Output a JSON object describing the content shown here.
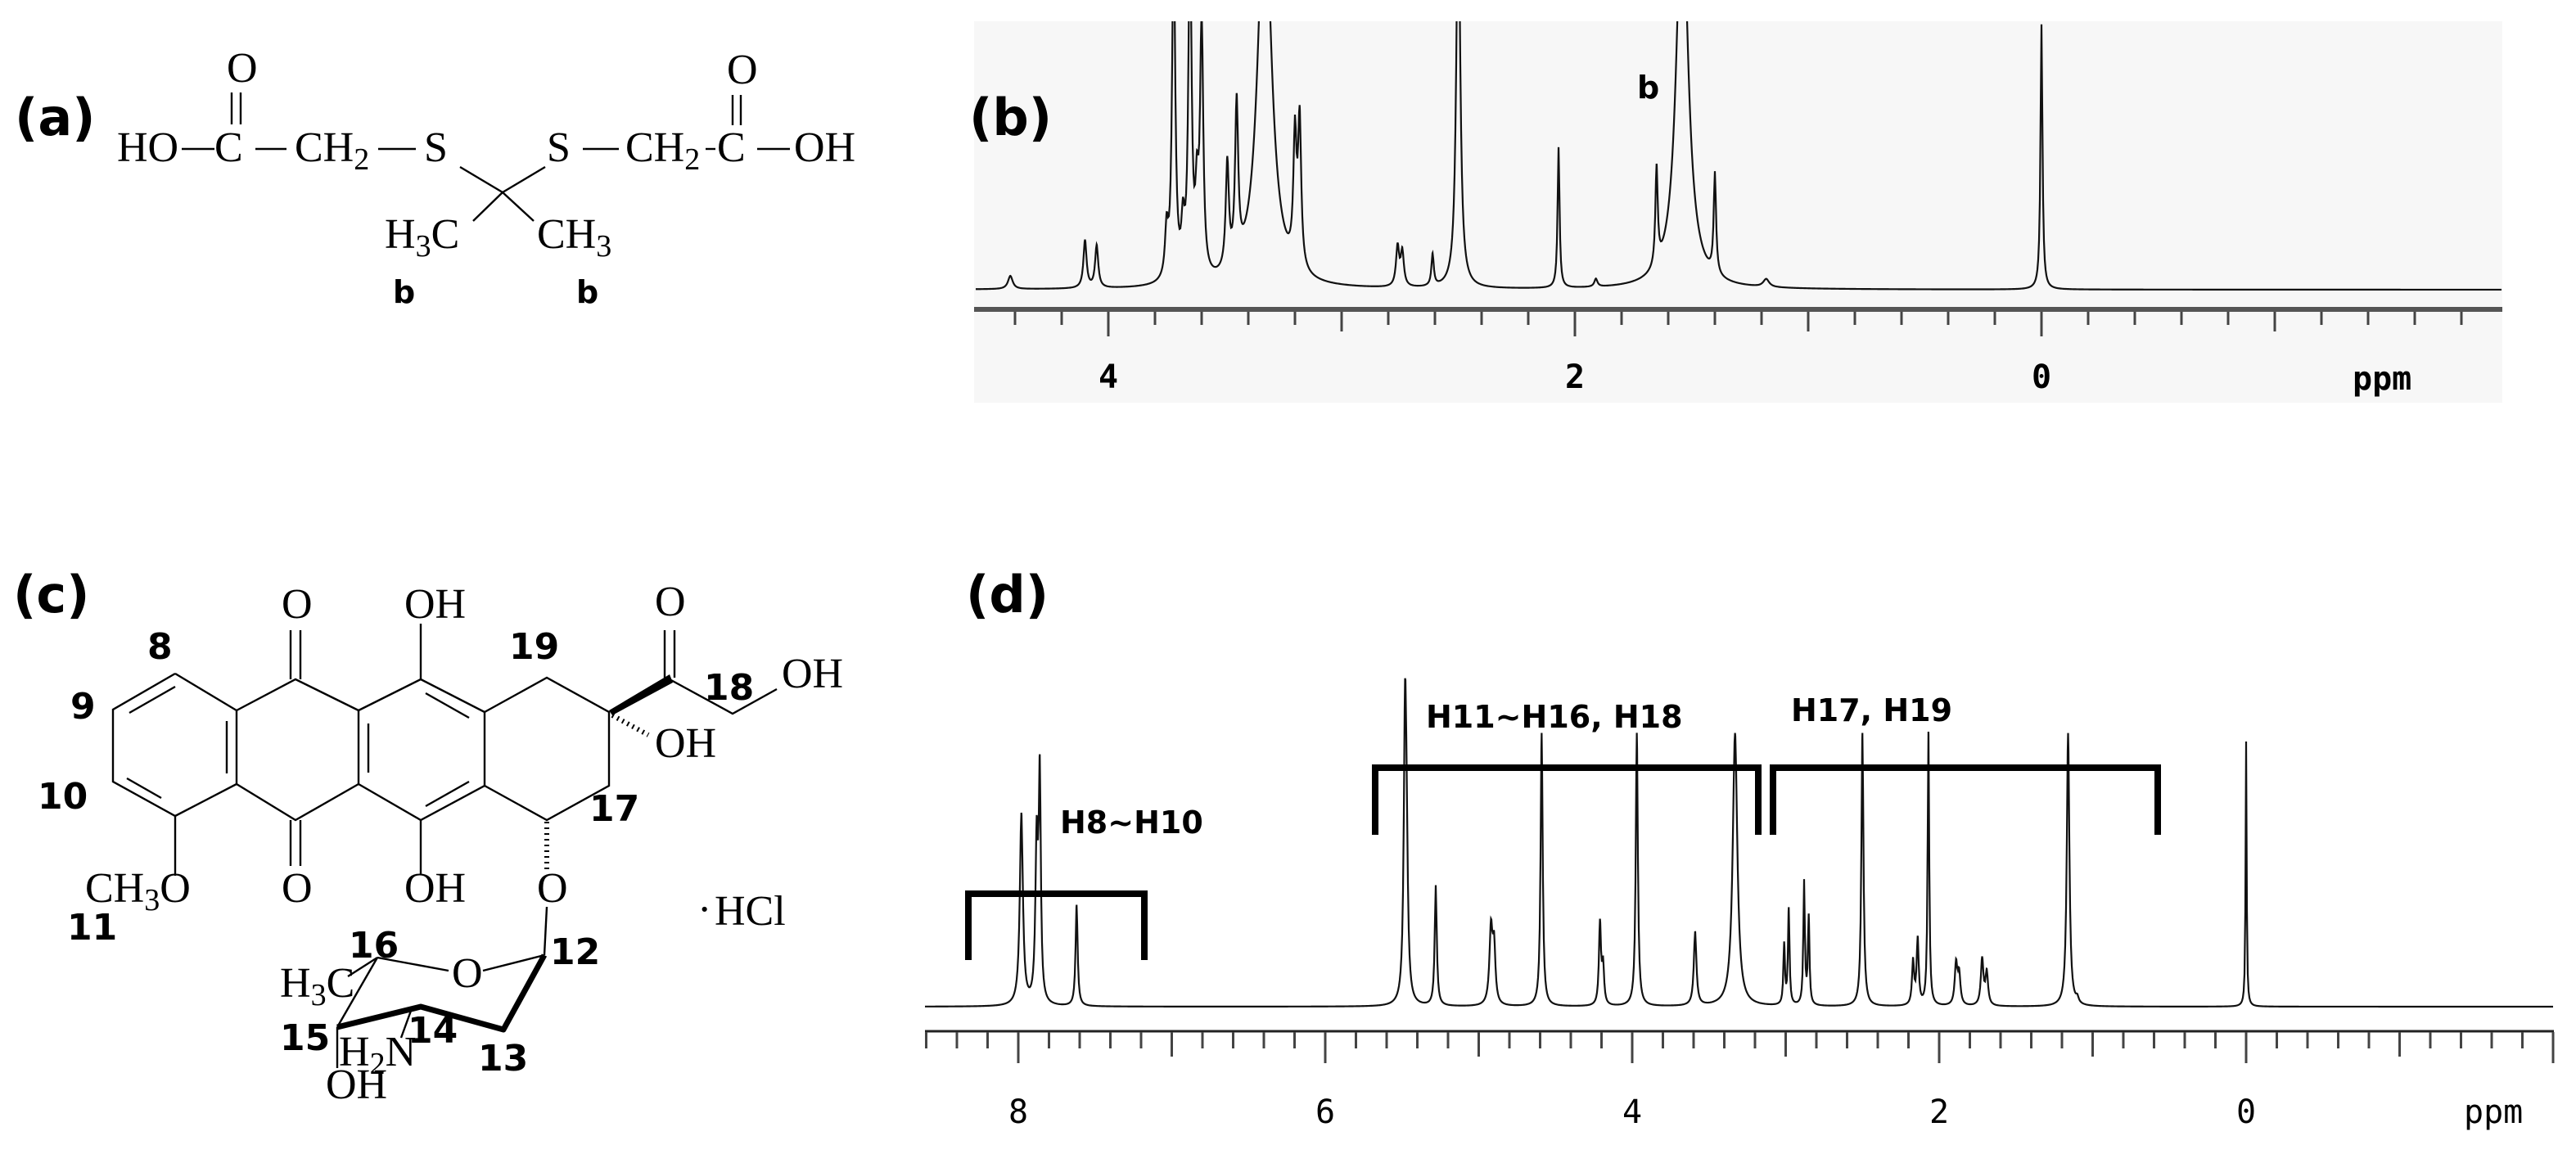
{
  "figure": {
    "panels": {
      "a": {
        "label": "(a)"
      },
      "b": {
        "label": "(b)"
      },
      "c": {
        "label": "(c)"
      },
      "d": {
        "label": "(d)"
      }
    },
    "structure_a": {
      "left_chain": {
        "ho": "HO",
        "c": "C",
        "ch": "CH",
        "sub2": "2",
        "s": "S",
        "o": "O"
      },
      "right_chain": {
        "s": "S",
        "ch": "CH",
        "sub2": "2",
        "c": "C",
        "oh": "OH",
        "o": "O"
      },
      "methyl_left": {
        "h": "H",
        "sub3": "3",
        "c": "C",
        "tag": "b"
      },
      "methyl_right": {
        "ch": "CH",
        "sub3": "3",
        "tag": "b"
      }
    },
    "structure_c": {
      "atom_numbers": [
        "8",
        "9",
        "10",
        "11",
        "12",
        "13",
        "14",
        "15",
        "16",
        "17",
        "18",
        "19"
      ],
      "groups": {
        "o_top": "O",
        "o_bottom": "O",
        "oh_top": "OH",
        "oh_bottom": "OH",
        "o_ketone": "O",
        "oh_18": "OH",
        "oh_9": "OH",
        "o_glyco": "O",
        "ch3o_ch": "CH",
        "ch3o_sub": "3",
        "ch3o_o": "O",
        "ring_o": "O",
        "h3c_h": "H",
        "h3c_sub": "3",
        "h3c_c": "C",
        "h2n_h": "H",
        "h2n_sub": "2",
        "h2n_n": "N",
        "oh_sugar": "OH",
        "hcl": "HCl",
        "hcl_dot": "·"
      }
    }
  },
  "chart_data": [
    {
      "id": "b",
      "type": "line",
      "title": "(b) 1H NMR spectrum of thioketal linker",
      "xlabel": "ppm",
      "x_reversed": true,
      "xlim": [
        4.6,
        -1.9
      ],
      "tick_labels": [
        "4",
        "2",
        "0"
      ],
      "tick_values": [
        4,
        2,
        0
      ],
      "minor_tick_step": 0.2,
      "annotations": [
        {
          "text": "b",
          "ppm": 1.54
        }
      ],
      "background": "#f7f7f7",
      "peaks": [
        {
          "ppm": 4.42,
          "height": 0.05,
          "width": 0.012
        },
        {
          "ppm": 4.1,
          "height": 0.18,
          "width": 0.008
        },
        {
          "ppm": 4.05,
          "height": 0.16,
          "width": 0.008
        },
        {
          "ppm": 3.75,
          "height": 0.18,
          "width": 0.008
        },
        {
          "ppm": 3.72,
          "height": 1.3,
          "width": 0.008
        },
        {
          "ppm": 3.68,
          "height": 0.18,
          "width": 0.008
        },
        {
          "ppm": 3.65,
          "height": 1.3,
          "width": 0.008
        },
        {
          "ppm": 3.62,
          "height": 0.27,
          "width": 0.008
        },
        {
          "ppm": 3.6,
          "height": 0.96,
          "width": 0.008
        },
        {
          "ppm": 3.49,
          "height": 0.4,
          "width": 0.008
        },
        {
          "ppm": 3.45,
          "height": 0.6,
          "width": 0.008
        },
        {
          "ppm": 3.33,
          "height": 1.5,
          "width": 0.035
        },
        {
          "ppm": 3.2,
          "height": 0.48,
          "width": 0.008
        },
        {
          "ppm": 3.18,
          "height": 0.55,
          "width": 0.008
        },
        {
          "ppm": 2.76,
          "height": 0.15,
          "width": 0.008
        },
        {
          "ppm": 2.74,
          "height": 0.13,
          "width": 0.008
        },
        {
          "ppm": 2.61,
          "height": 0.12,
          "width": 0.006
        },
        {
          "ppm": 2.5,
          "height": 1.5,
          "width": 0.01
        },
        {
          "ppm": 2.07,
          "height": 0.53,
          "width": 0.005
        },
        {
          "ppm": 1.91,
          "height": 0.03,
          "width": 0.008
        },
        {
          "ppm": 1.65,
          "height": 0.37,
          "width": 0.006
        },
        {
          "ppm": 1.54,
          "height": 1.5,
          "width": 0.03
        },
        {
          "ppm": 1.4,
          "height": 0.38,
          "width": 0.006
        },
        {
          "ppm": 1.18,
          "height": 0.03,
          "width": 0.015
        },
        {
          "ppm": 0.0,
          "height": 1.0,
          "width": 0.005
        }
      ]
    },
    {
      "id": "d",
      "type": "line",
      "title": "(d) 1H NMR spectrum of doxorubicin hydrochloride",
      "xlabel": "ppm",
      "x_reversed": true,
      "xlim": [
        8.9,
        -2.0
      ],
      "tick_labels": [
        "8",
        "6",
        "4",
        "2",
        "0"
      ],
      "tick_values": [
        8,
        6,
        4,
        2,
        0
      ],
      "minor_tick_step": 0.2,
      "background": "#ffffff",
      "annotations": [
        {
          "text": "H8~H10",
          "range": [
            8.35,
            7.2
          ]
        },
        {
          "text": "H11~H16, H18",
          "range": [
            5.7,
            3.2
          ]
        },
        {
          "text": "H17, H19",
          "range": [
            3.1,
            0.6
          ]
        }
      ],
      "peaks": [
        {
          "ppm": 7.98,
          "height": 0.7,
          "width": 0.012
        },
        {
          "ppm": 7.88,
          "height": 0.58,
          "width": 0.01
        },
        {
          "ppm": 7.86,
          "height": 0.8,
          "width": 0.008
        },
        {
          "ppm": 7.62,
          "height": 0.37,
          "width": 0.008
        },
        {
          "ppm": 5.48,
          "height": 1.0,
          "width": 0.01
        },
        {
          "ppm": 5.47,
          "height": 0.4,
          "width": 0.01
        },
        {
          "ppm": 5.28,
          "height": 0.44,
          "width": 0.008
        },
        {
          "ppm": 4.92,
          "height": 0.28,
          "width": 0.012
        },
        {
          "ppm": 4.9,
          "height": 0.2,
          "width": 0.01
        },
        {
          "ppm": 4.59,
          "height": 1.0,
          "width": 0.008
        },
        {
          "ppm": 4.21,
          "height": 0.3,
          "width": 0.008
        },
        {
          "ppm": 4.19,
          "height": 0.14,
          "width": 0.008
        },
        {
          "ppm": 3.97,
          "height": 1.0,
          "width": 0.008
        },
        {
          "ppm": 3.59,
          "height": 0.27,
          "width": 0.01
        },
        {
          "ppm": 3.33,
          "height": 1.0,
          "width": 0.018
        },
        {
          "ppm": 3.01,
          "height": 0.22,
          "width": 0.006
        },
        {
          "ppm": 2.98,
          "height": 0.35,
          "width": 0.006
        },
        {
          "ppm": 2.88,
          "height": 0.45,
          "width": 0.006
        },
        {
          "ppm": 2.85,
          "height": 0.32,
          "width": 0.006
        },
        {
          "ppm": 2.5,
          "height": 1.0,
          "width": 0.008
        },
        {
          "ppm": 2.17,
          "height": 0.16,
          "width": 0.008
        },
        {
          "ppm": 2.14,
          "height": 0.24,
          "width": 0.008
        },
        {
          "ppm": 2.07,
          "height": 1.0,
          "width": 0.006
        },
        {
          "ppm": 1.89,
          "height": 0.15,
          "width": 0.01
        },
        {
          "ppm": 1.87,
          "height": 0.11,
          "width": 0.01
        },
        {
          "ppm": 1.72,
          "height": 0.17,
          "width": 0.01
        },
        {
          "ppm": 1.69,
          "height": 0.12,
          "width": 0.01
        },
        {
          "ppm": 1.16,
          "height": 1.0,
          "width": 0.01
        },
        {
          "ppm": 1.1,
          "height": 0.02,
          "width": 0.01
        },
        {
          "ppm": 0.0,
          "height": 0.97,
          "width": 0.004
        }
      ]
    }
  ]
}
